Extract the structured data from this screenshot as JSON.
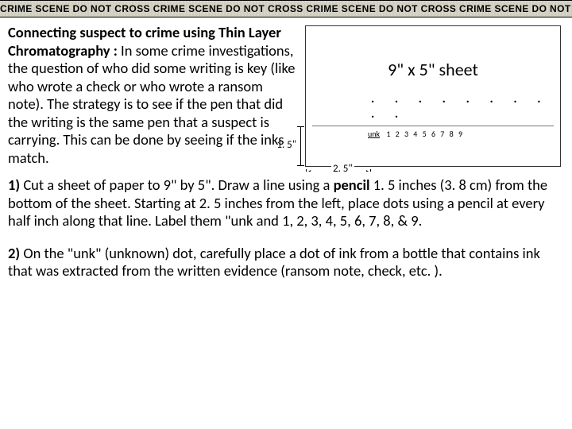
{
  "tape": {
    "phrase": "CRIME SCENE DO NOT CROSS",
    "repeat": 6
  },
  "intro": {
    "head": "Connecting suspect to crime using Thin Layer Chromatography :",
    "body": "   In some crime investigations,  the question of who did some writing is key (like who wrote  a check or who wrote a ransom note).  The strategy is to see if the pen that did the writing is the same pen that a suspect is carrying.   This can be done by seeing if the inks match."
  },
  "sheet": {
    "label": "9\"  x  5\" sheet",
    "v_measure": "1. 5\"",
    "h_measure": "2. 5\"",
    "dots": ". . . . . . . . . .",
    "dot_labels_unk": "unk",
    "dot_labels_nums": " 1 2  3 4 5  6 7 8 9"
  },
  "steps": {
    "s1_num": " 1)",
    "s1_a": "  Cut a sheet of paper to 9\" by 5\".  Draw a line using a ",
    "s1_pencil": "pencil",
    "s1_b": " 1. 5 inches (3. 8 cm) from the bottom of the sheet.  Starting at 2. 5 inches from the left, place dots using a pencil at every half inch along that line.  Label them \"unk and 1, 2, 3, 4, 5, 6, 7, 8, & 9.",
    "s2_num": "2)",
    "s2": " On the \"unk\" (unknown) dot, carefully place a dot of ink from a bottle that contains ink that was extracted from the written evidence (ransom note, check, etc. )."
  }
}
